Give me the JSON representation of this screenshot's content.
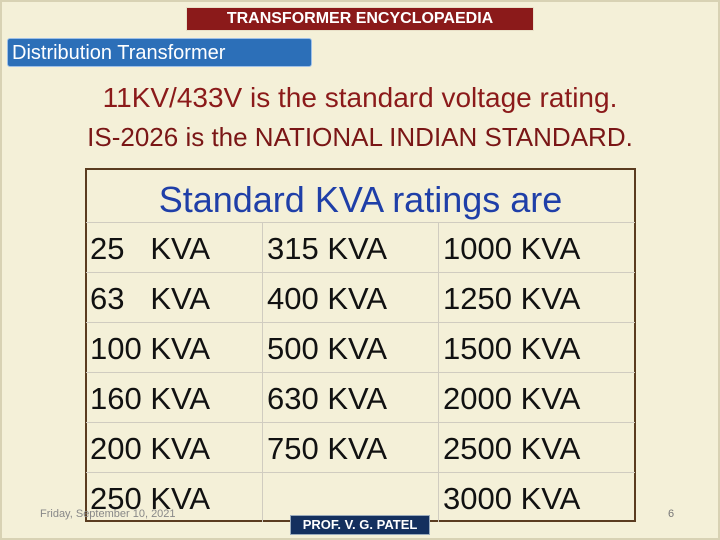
{
  "header": {
    "banner": "TRANSFORMER ENCYCLOPAEDIA",
    "section": "Distribution Transformer"
  },
  "statements": [
    "11KV/433V is the standard voltage rating.",
    "IS-2026 is the NATIONAL INDIAN STANDARD."
  ],
  "table": {
    "heading": "Standard KVA ratings are",
    "columns": [
      [
        "25   KVA",
        "63   KVA",
        "100 KVA",
        "160 KVA",
        "200 KVA",
        "250 KVA"
      ],
      [
        "315 KVA",
        "400 KVA",
        "500 KVA",
        "630 KVA",
        "750 KVA"
      ],
      [
        "1000 KVA",
        "1250 KVA",
        "1500 KVA",
        "2000 KVA",
        "2500 KVA",
        "3000 KVA"
      ]
    ]
  },
  "footer": {
    "date": "Friday, September 10, 2021",
    "author": "PROF. V. G. PATEL",
    "page": "6"
  }
}
